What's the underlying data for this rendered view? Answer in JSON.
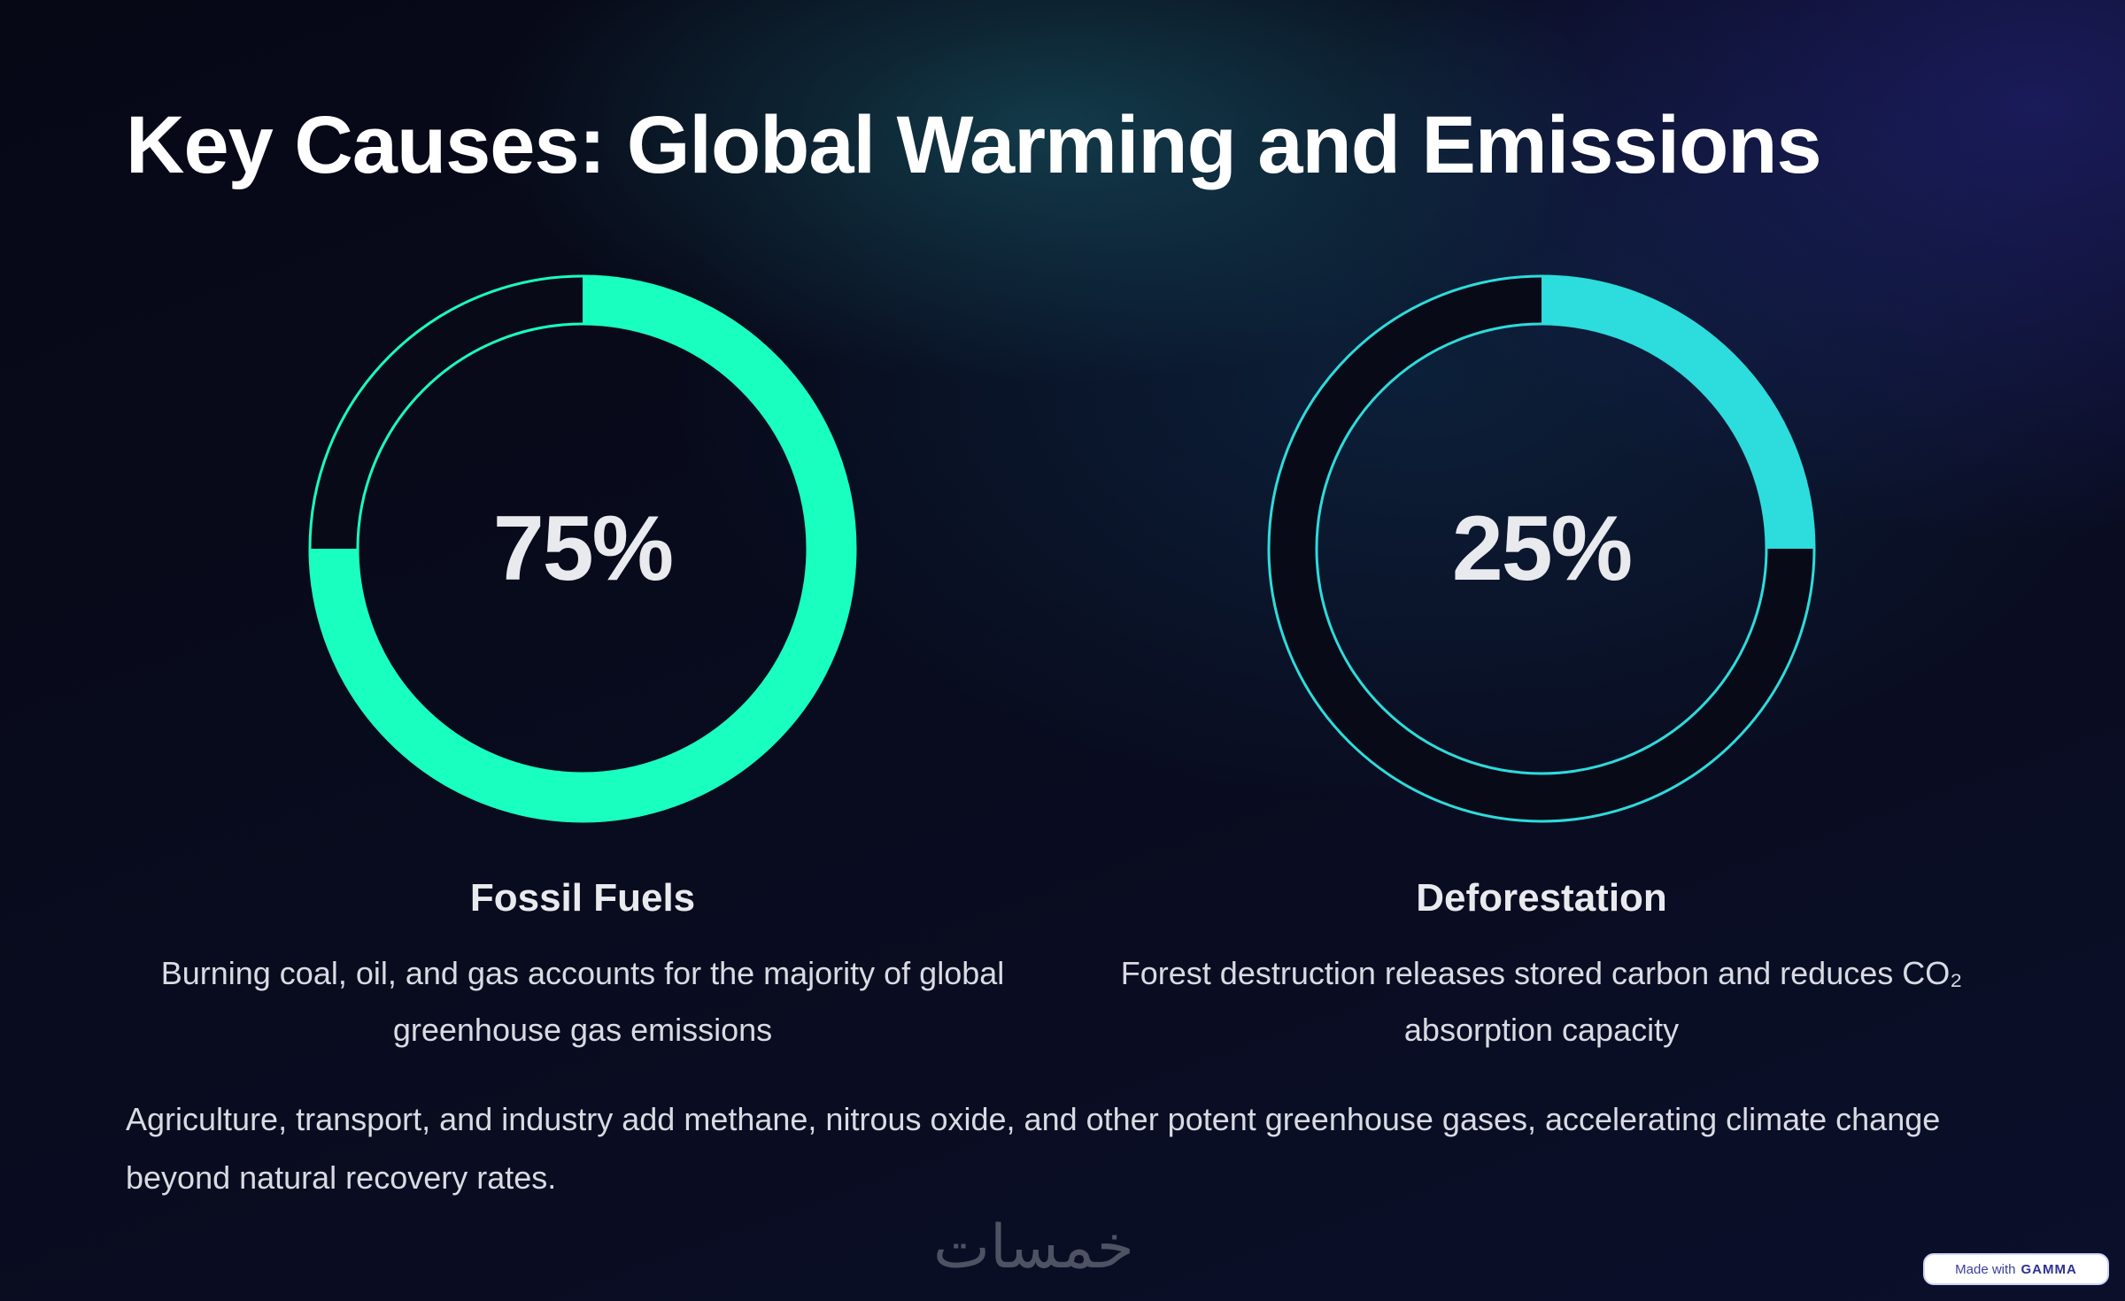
{
  "slide": {
    "title": "Key Causes: Global Warming and Emissions",
    "stats": [
      {
        "value_label": "75%",
        "fraction": 0.75,
        "label": "Fossil Fuels",
        "description": "Burning coal, oil, and gas accounts for the majority of global greenhouse gas emissions",
        "color": "#19ffc0"
      },
      {
        "value_label": "25%",
        "fraction": 0.25,
        "label": "Deforestation",
        "description": "Forest destruction releases stored carbon and reduces CO₂ absorption capacity",
        "color": "#2ddcdc"
      }
    ],
    "footer_note": "Agriculture, transport, and industry add methane, nitrous oxide, and other potent greenhouse gases, accelerating climate change beyond natural recovery rates.",
    "watermark": "خمسات",
    "badge": {
      "prefix": "Made with",
      "brand": "GAMMA"
    }
  }
}
